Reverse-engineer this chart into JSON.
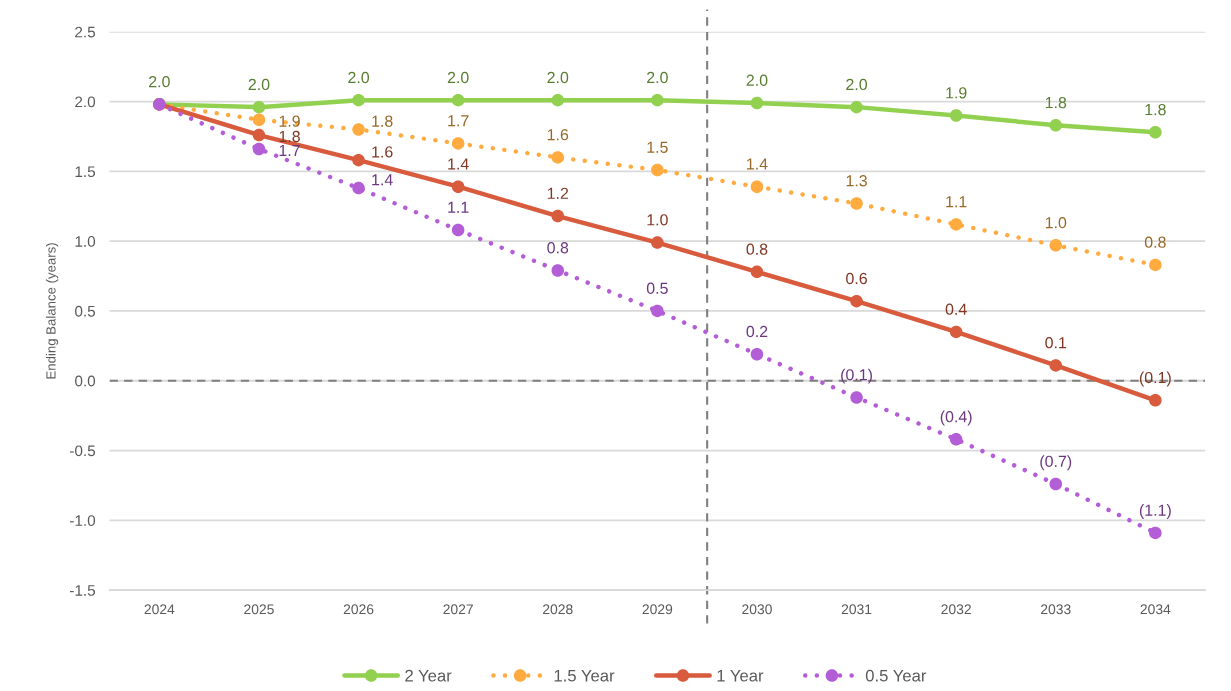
{
  "chart_data": {
    "type": "line",
    "ylabel": "Ending Balance (years)",
    "x": [
      2024,
      2025,
      2026,
      2027,
      2028,
      2029,
      2030,
      2031,
      2032,
      2033,
      2034
    ],
    "xlim": [
      2023.5,
      2034.5
    ],
    "xticks": [
      2024,
      2025,
      2026,
      2027,
      2028,
      2029,
      2030,
      2031,
      2032,
      2033,
      2034
    ],
    "ylim": [
      -1.5,
      2.5
    ],
    "yticks": [
      {
        "value": -1.5,
        "label": "-1.5"
      },
      {
        "value": -1,
        "label": "-1.0"
      },
      {
        "value": -0.5,
        "label": "-0.5"
      },
      {
        "value": 0,
        "label": "0.0"
      },
      {
        "value": 0.5,
        "label": "0.5"
      },
      {
        "value": 1,
        "label": "1.0"
      },
      {
        "value": 1.5,
        "label": "1.5"
      },
      {
        "value": 2,
        "label": "2.0"
      },
      {
        "value": 2.5,
        "label": "2.5"
      }
    ],
    "grid": "y",
    "legend": "bottom",
    "marker": "circle",
    "series": [
      {
        "name": "2 Year",
        "color": "#92d050",
        "line_style": "solid",
        "values": [
          1.98,
          1.96,
          2.01,
          2.01,
          2.01,
          2.01,
          1.99,
          1.96,
          1.9,
          1.83,
          1.78
        ],
        "value_labels": [
          "2.0",
          "2.0",
          "2.0",
          "2.0",
          "2.0",
          "2.0",
          "2.0",
          "2.0",
          "1.9",
          "1.8",
          "1.8"
        ]
      },
      {
        "name": "1.5 Year",
        "color": "#ffab40",
        "line_style": "dotted",
        "values": [
          1.98,
          1.87,
          1.8,
          1.7,
          1.6,
          1.51,
          1.39,
          1.27,
          1.12,
          0.97,
          0.83
        ],
        "value_labels": [
          null,
          "1.9",
          "1.8",
          "1.7",
          "1.6",
          "1.5",
          "1.4",
          "1.3",
          "1.1",
          "1.0",
          "0.8"
        ]
      },
      {
        "name": "1 Year",
        "color": "#d75b3c",
        "line_style": "solid",
        "values": [
          1.98,
          1.76,
          1.58,
          1.39,
          1.18,
          0.99,
          0.78,
          0.57,
          0.35,
          0.11,
          -0.14
        ],
        "value_labels": [
          null,
          "1.8",
          "1.6",
          "1.4",
          "1.2",
          "1.0",
          "0.8",
          "0.6",
          "0.4",
          "0.1",
          "(0.1)"
        ]
      },
      {
        "name": "0.5 Year",
        "color": "#b35dd6",
        "line_style": "dotted",
        "values": [
          1.98,
          1.66,
          1.38,
          1.08,
          0.79,
          0.5,
          0.19,
          -0.12,
          -0.42,
          -0.74,
          -1.09
        ],
        "value_labels": [
          null,
          "1.7",
          "1.4",
          "1.1",
          "0.8",
          "0.5",
          "0.2",
          "(0.1)",
          "(0.4)",
          "(0.7)",
          "(1.1)"
        ]
      }
    ],
    "ref_lines": [
      {
        "axis": "y",
        "value": 0,
        "color": "#7f7f7f",
        "line_style": "dashed"
      },
      {
        "axis": "x",
        "value": 2029.5,
        "color": "#7f7f7f",
        "line_style": "dashed"
      }
    ]
  }
}
